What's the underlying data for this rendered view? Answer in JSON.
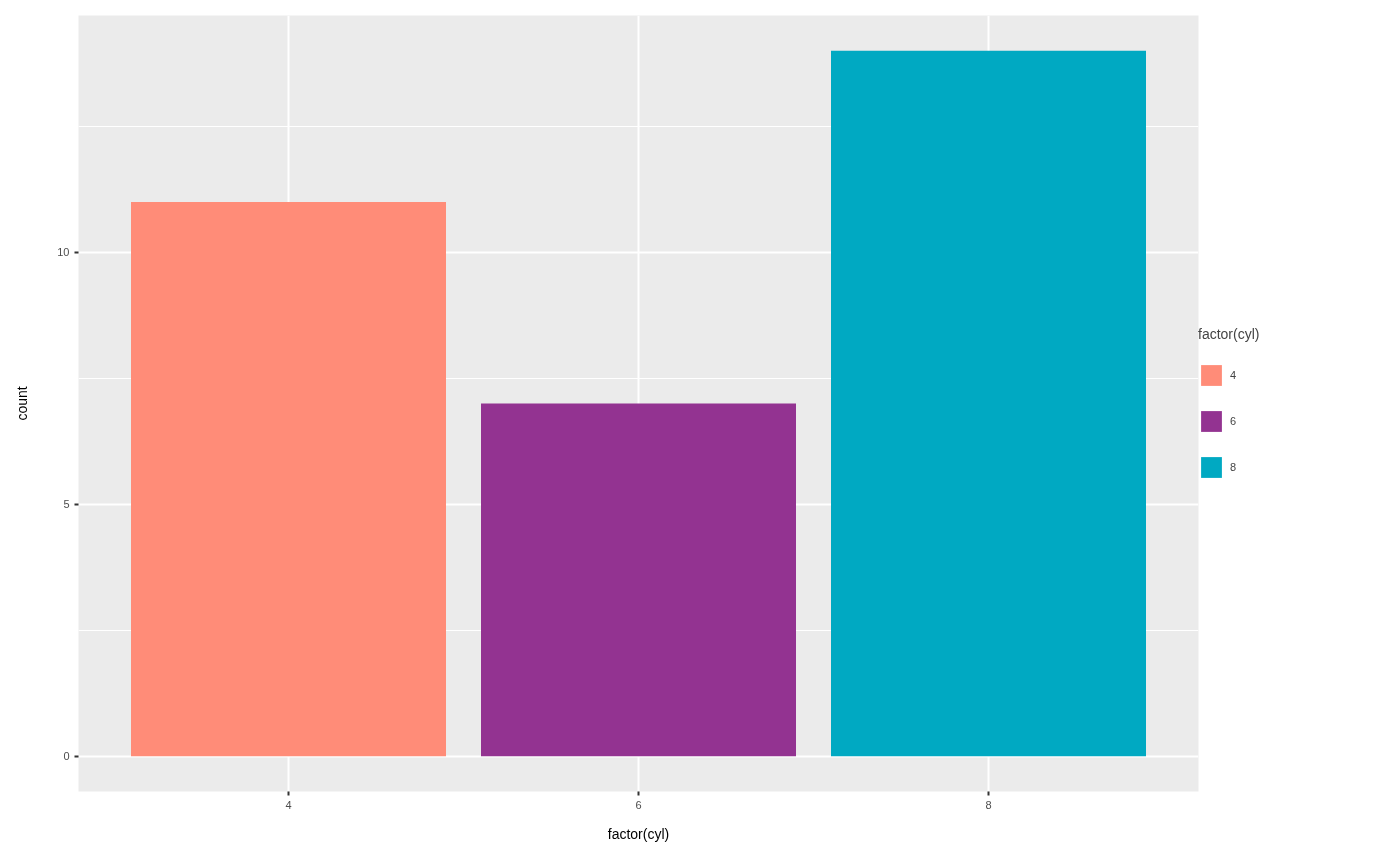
{
  "chart_data": {
    "type": "bar",
    "xlabel": "factor(cyl)",
    "ylabel": "count",
    "legend_title": "factor(cyl)",
    "categories": [
      "4",
      "6",
      "8"
    ],
    "series": [
      {
        "name": "4",
        "color": "#ff8c78",
        "values": [
          11,
          null,
          null
        ]
      },
      {
        "name": "6",
        "color": "#933391",
        "values": [
          null,
          7,
          null
        ]
      },
      {
        "name": "8",
        "color": "#00a9c2",
        "values": [
          null,
          null,
          14
        ]
      }
    ],
    "stacked": true,
    "ylim": [
      -0.7,
      14.7
    ],
    "yticks": [
      0,
      5,
      10
    ],
    "grid": true,
    "legend": "right"
  }
}
